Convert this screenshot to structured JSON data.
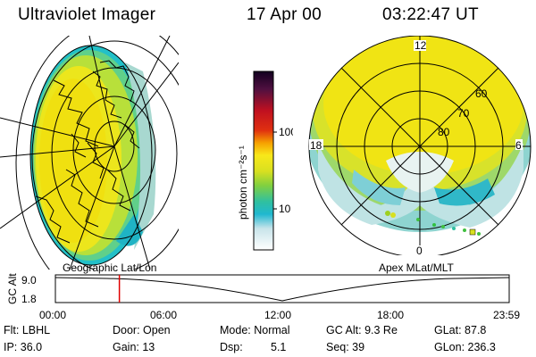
{
  "header": {
    "title": "Ultraviolet Imager",
    "date": "17 Apr 00",
    "time": "03:22:47 UT"
  },
  "colorbar": {
    "unit_label": "photon cm⁻²s⁻¹",
    "ticks": [
      "100",
      "10"
    ]
  },
  "polar_plot": {
    "mlt_labels": [
      "12",
      "18",
      "6",
      "0"
    ],
    "lat_labels": [
      "60",
      "70",
      "80"
    ]
  },
  "timeline": {
    "left_label": "Geographic Lat/Lon",
    "right_label": "Apex MLat/MLT",
    "axis_title": "GC Alt",
    "y_ticks": [
      "9.0",
      "1.8"
    ],
    "x_ticks": [
      "00:00",
      "06:00",
      "12:00",
      "18:00",
      "23:59"
    ],
    "current_time_fraction": 0.141
  },
  "info": {
    "flt": "Flt: LBHL",
    "ip": "IP: 36.0",
    "door": "Door: Open",
    "gain": "Gain: 13",
    "mode": "Mode: Normal",
    "dsp_label": "Dsp:",
    "dsp_value": "5.1",
    "gc_alt": "GC Alt: 9.3 Re",
    "seq": "Seq: 39",
    "glat": "GLat: 87.8",
    "glon": "GLon: 236.3"
  }
}
